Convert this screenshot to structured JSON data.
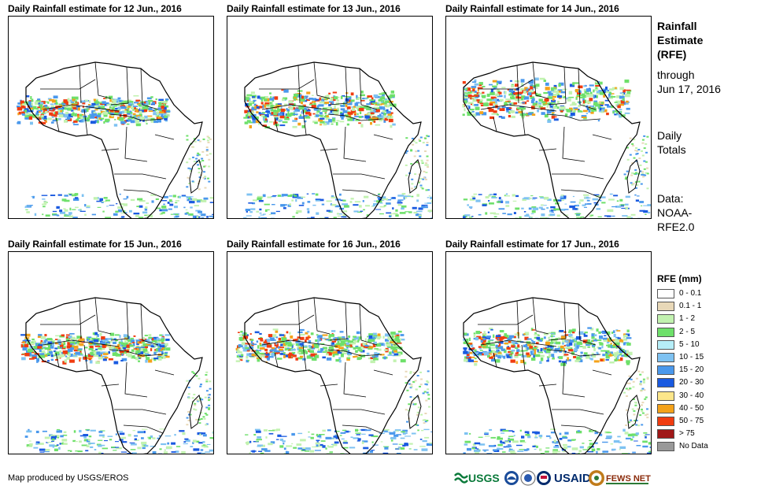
{
  "panels": [
    {
      "title": "Daily Rainfall estimate for 12 Jun., 2016"
    },
    {
      "title": "Daily Rainfall estimate for 13 Jun., 2016"
    },
    {
      "title": "Daily Rainfall estimate for 14 Jun., 2016"
    },
    {
      "title": "Daily Rainfall estimate for 15 Jun., 2016"
    },
    {
      "title": "Daily Rainfall estimate for 16 Jun., 2016"
    },
    {
      "title": "Daily Rainfall estimate for 17 Jun., 2016"
    }
  ],
  "side": {
    "title": [
      "Rainfall",
      "Estimate",
      "(RFE)"
    ],
    "through": [
      "through",
      "Jun 17, 2016"
    ],
    "totals": [
      "Daily",
      "Totals"
    ],
    "source": [
      "Data:",
      "NOAA-",
      "RFE2.0"
    ]
  },
  "legend": {
    "title": "RFE (mm)",
    "items": [
      {
        "label": "0 - 0.1",
        "color": "#ffffff"
      },
      {
        "label": "0.1 - 1",
        "color": "#e8d8b8"
      },
      {
        "label": "1 - 2",
        "color": "#c2f2b0"
      },
      {
        "label": "2 - 5",
        "color": "#6ee06a"
      },
      {
        "label": "5 - 10",
        "color": "#b6eef8"
      },
      {
        "label": "10 - 15",
        "color": "#7ec2f2"
      },
      {
        "label": "15 - 20",
        "color": "#4a98ec"
      },
      {
        "label": "20 - 30",
        "color": "#1a5ae0"
      },
      {
        "label": "30 - 40",
        "color": "#fce68a"
      },
      {
        "label": "40 - 50",
        "color": "#f4a21a"
      },
      {
        "label": "50 - 75",
        "color": "#f03c10"
      },
      {
        "label": "> 75",
        "color": "#a01818"
      },
      {
        "label": "No Data",
        "color": "#999999"
      }
    ]
  },
  "credit": "Map produced by USGS/EROS",
  "logos": {
    "usgs": "USGS",
    "usaid": "USAID",
    "fewsnet": "FEWS NET"
  }
}
